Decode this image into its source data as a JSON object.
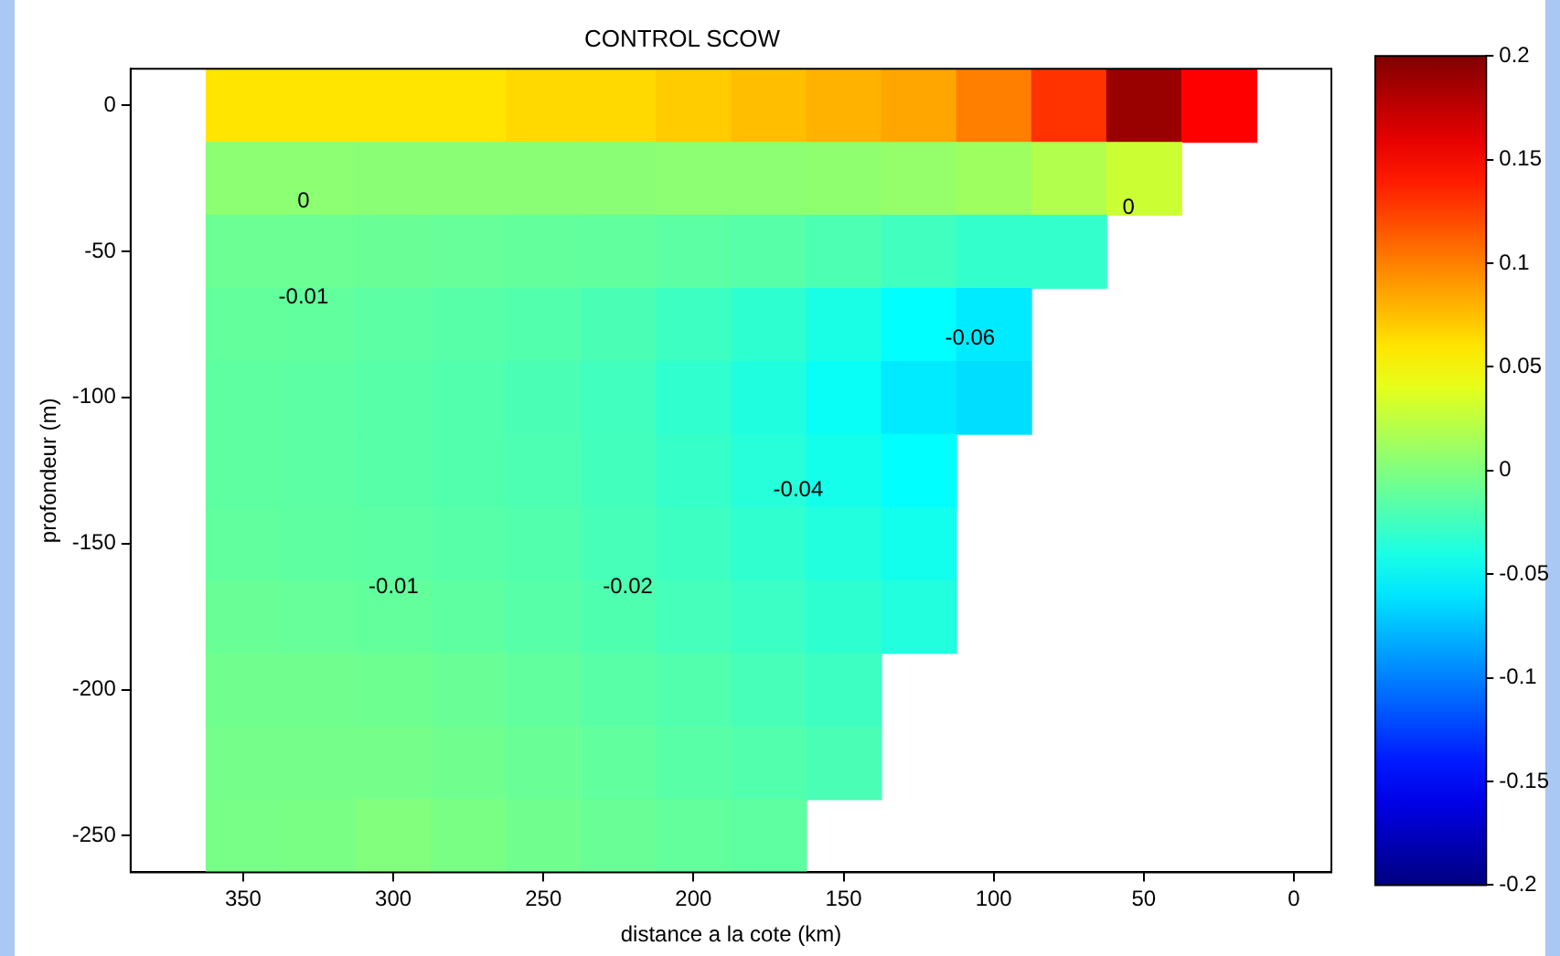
{
  "chart_data": {
    "type": "heatmap",
    "title": "CONTROL SCOW",
    "xlabel": "distance a la cote (km)",
    "ylabel": "profondeur (m)",
    "categories": [
      null,
      "350",
      null,
      "300",
      null,
      "250",
      null,
      "200",
      null,
      "150",
      null,
      "100",
      null,
      "50",
      null,
      "0"
    ],
    "y_categories": [
      "0",
      null,
      "-50",
      null,
      "-100",
      null,
      "-150",
      null,
      "-200",
      null,
      "-250"
    ],
    "clim": [
      -0.2,
      0.2
    ],
    "cticks": [
      0.2,
      0.15,
      0.1,
      0.05,
      0,
      -0.05,
      -0.1,
      -0.15,
      -0.2
    ],
    "cells": [
      [
        null,
        0.06,
        0.06,
        0.06,
        0.06,
        0.065,
        0.065,
        0.07,
        0.075,
        0.08,
        0.085,
        0.1,
        0.13,
        0.19,
        0.15,
        null
      ],
      [
        null,
        0.005,
        0.005,
        0.004,
        0.004,
        0.004,
        0.004,
        0.005,
        0.005,
        0.006,
        0.008,
        0.012,
        0.02,
        0.03,
        null,
        null
      ],
      [
        null,
        -0.008,
        -0.008,
        -0.009,
        -0.01,
        -0.011,
        -0.012,
        -0.014,
        -0.016,
        -0.02,
        -0.025,
        -0.03,
        -0.03,
        null,
        null,
        null
      ],
      [
        null,
        -0.011,
        -0.012,
        -0.014,
        -0.016,
        -0.018,
        -0.021,
        -0.026,
        -0.032,
        -0.04,
        -0.05,
        -0.058,
        null,
        null,
        null,
        null
      ],
      [
        null,
        -0.013,
        -0.014,
        -0.016,
        -0.018,
        -0.021,
        -0.025,
        -0.031,
        -0.038,
        -0.047,
        -0.058,
        -0.063,
        null,
        null,
        null,
        null
      ],
      [
        null,
        -0.013,
        -0.014,
        -0.016,
        -0.018,
        -0.02,
        -0.024,
        -0.029,
        -0.035,
        -0.042,
        -0.05,
        null,
        null,
        null,
        null,
        null
      ],
      [
        null,
        -0.012,
        -0.013,
        -0.014,
        -0.016,
        -0.018,
        -0.022,
        -0.026,
        -0.031,
        -0.037,
        -0.043,
        null,
        null,
        null,
        null,
        null
      ],
      [
        null,
        -0.009,
        -0.01,
        -0.011,
        -0.013,
        -0.016,
        -0.019,
        -0.023,
        -0.027,
        -0.032,
        -0.037,
        null,
        null,
        null,
        null,
        null
      ],
      [
        null,
        -0.006,
        -0.006,
        -0.007,
        -0.009,
        -0.012,
        -0.015,
        -0.018,
        -0.022,
        -0.026,
        null,
        null,
        null,
        null,
        null,
        null
      ],
      [
        null,
        -0.004,
        -0.004,
        -0.004,
        -0.006,
        -0.009,
        -0.012,
        -0.015,
        -0.018,
        -0.021,
        null,
        null,
        null,
        null,
        null,
        null
      ],
      [
        null,
        -0.003,
        -0.002,
        0.001,
        -0.002,
        -0.006,
        -0.009,
        -0.011,
        -0.013,
        null,
        null,
        null,
        null,
        null,
        null,
        null
      ]
    ],
    "annotations": [
      "0",
      "0",
      "-0.01",
      "-0.06",
      "-0.04",
      "-0.02",
      "-0.01"
    ]
  }
}
